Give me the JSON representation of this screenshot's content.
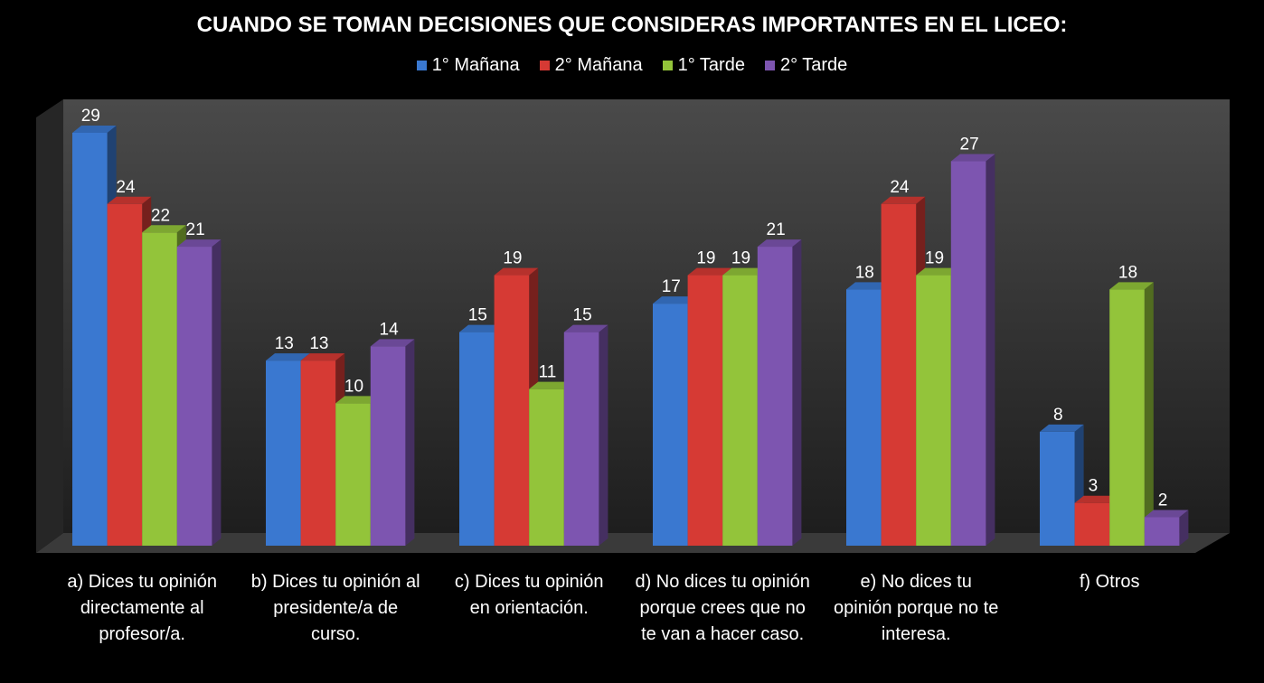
{
  "chart_data": {
    "type": "bar",
    "title": "CUANDO SE TOMAN DECISIONES QUE CONSIDERAS IMPORTANTES EN EL LICEO:",
    "categories": [
      "a) Dices tu opinión directamente al profesor/a.",
      "b) Dices tu opinión al presidente/a de curso.",
      "c) Dices tu opinión en orientación.",
      "d) No dices tu opinión porque crees que no te van a hacer caso.",
      "e) No dices tu opinión porque no te interesa.",
      "f) Otros"
    ],
    "series": [
      {
        "name": "1° Mañana",
        "color": "#3a78d0",
        "values": [
          29,
          13,
          15,
          17,
          18,
          8
        ]
      },
      {
        "name": "2° Mañana",
        "color": "#d63a34",
        "values": [
          24,
          13,
          19,
          19,
          24,
          3
        ]
      },
      {
        "name": "1° Tarde",
        "color": "#93c43a",
        "values": [
          22,
          10,
          11,
          19,
          19,
          18
        ]
      },
      {
        "name": "2° Tarde",
        "color": "#7d55b0",
        "values": [
          21,
          14,
          15,
          21,
          27,
          2
        ]
      }
    ],
    "ylim": [
      0,
      29
    ],
    "legend_position": "top",
    "grid": false,
    "data_labels": true
  }
}
